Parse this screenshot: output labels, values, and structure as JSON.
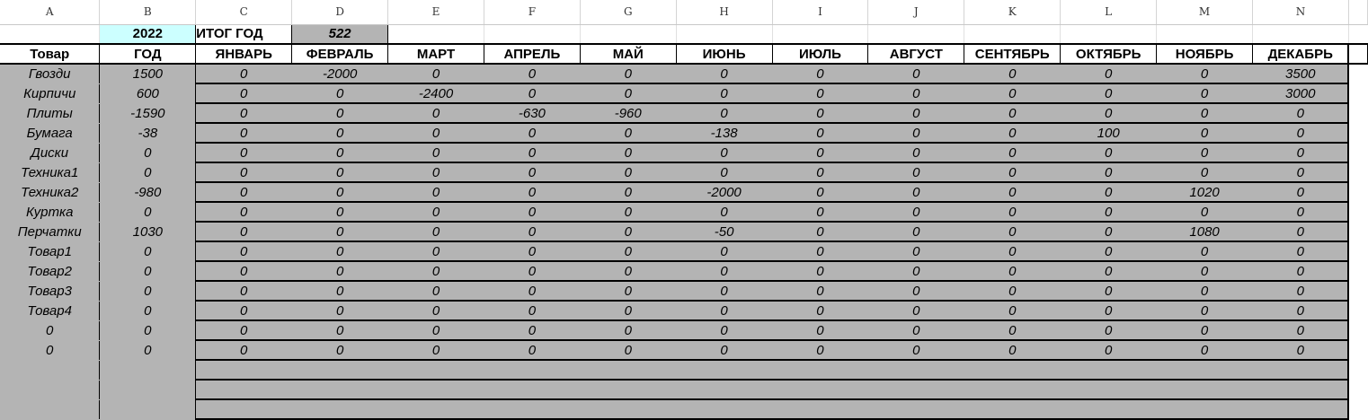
{
  "columns": [
    "A",
    "B",
    "C",
    "D",
    "E",
    "F",
    "G",
    "H",
    "I",
    "J",
    "K",
    "L",
    "M",
    "N"
  ],
  "row1": {
    "year": "2022",
    "total_label": "ИТОГ ГОД",
    "total_value": "522"
  },
  "header": {
    "item": "Товар",
    "year": "ГОД",
    "months": [
      "ЯНВАРЬ",
      "ФЕВРАЛЬ",
      "МАРТ",
      "АПРЕЛЬ",
      "МАЙ",
      "ИЮНЬ",
      "ИЮЛЬ",
      "АВГУСТ",
      "СЕНТЯБРЬ",
      "ОКТЯБРЬ",
      "НОЯБРЬ",
      "ДЕКАБРЬ"
    ]
  },
  "rows": [
    {
      "item": "Гвозди",
      "year": "1500",
      "months": [
        "0",
        "-2000",
        "0",
        "0",
        "0",
        "0",
        "0",
        "0",
        "0",
        "0",
        "0",
        "3500"
      ]
    },
    {
      "item": "Кирпичи",
      "year": "600",
      "months": [
        "0",
        "0",
        "-2400",
        "0",
        "0",
        "0",
        "0",
        "0",
        "0",
        "0",
        "0",
        "3000"
      ]
    },
    {
      "item": "Плиты",
      "year": "-1590",
      "months": [
        "0",
        "0",
        "0",
        "-630",
        "-960",
        "0",
        "0",
        "0",
        "0",
        "0",
        "0",
        "0"
      ]
    },
    {
      "item": "Бумага",
      "year": "-38",
      "months": [
        "0",
        "0",
        "0",
        "0",
        "0",
        "-138",
        "0",
        "0",
        "0",
        "100",
        "0",
        "0"
      ]
    },
    {
      "item": "Диски",
      "year": "0",
      "months": [
        "0",
        "0",
        "0",
        "0",
        "0",
        "0",
        "0",
        "0",
        "0",
        "0",
        "0",
        "0"
      ]
    },
    {
      "item": "Техника1",
      "year": "0",
      "months": [
        "0",
        "0",
        "0",
        "0",
        "0",
        "0",
        "0",
        "0",
        "0",
        "0",
        "0",
        "0"
      ]
    },
    {
      "item": "Техника2",
      "year": "-980",
      "months": [
        "0",
        "0",
        "0",
        "0",
        "0",
        "-2000",
        "0",
        "0",
        "0",
        "0",
        "1020",
        "0"
      ]
    },
    {
      "item": "Куртка",
      "year": "0",
      "months": [
        "0",
        "0",
        "0",
        "0",
        "0",
        "0",
        "0",
        "0",
        "0",
        "0",
        "0",
        "0"
      ]
    },
    {
      "item": "Перчатки",
      "year": "1030",
      "months": [
        "0",
        "0",
        "0",
        "0",
        "0",
        "-50",
        "0",
        "0",
        "0",
        "0",
        "1080",
        "0"
      ]
    },
    {
      "item": "Товар1",
      "year": "0",
      "months": [
        "0",
        "0",
        "0",
        "0",
        "0",
        "0",
        "0",
        "0",
        "0",
        "0",
        "0",
        "0"
      ]
    },
    {
      "item": "Товар2",
      "year": "0",
      "months": [
        "0",
        "0",
        "0",
        "0",
        "0",
        "0",
        "0",
        "0",
        "0",
        "0",
        "0",
        "0"
      ]
    },
    {
      "item": "Товар3",
      "year": "0",
      "months": [
        "0",
        "0",
        "0",
        "0",
        "0",
        "0",
        "0",
        "0",
        "0",
        "0",
        "0",
        "0"
      ]
    },
    {
      "item": "Товар4",
      "year": "0",
      "months": [
        "0",
        "0",
        "0",
        "0",
        "0",
        "0",
        "0",
        "0",
        "0",
        "0",
        "0",
        "0"
      ]
    },
    {
      "item": "0",
      "year": "0",
      "months": [
        "0",
        "0",
        "0",
        "0",
        "0",
        "0",
        "0",
        "0",
        "0",
        "0",
        "0",
        "0"
      ]
    },
    {
      "item": "0",
      "year": "0",
      "months": [
        "0",
        "0",
        "0",
        "0",
        "0",
        "0",
        "0",
        "0",
        "0",
        "0",
        "0",
        "0"
      ]
    }
  ],
  "empty_rows": 3,
  "colors": {
    "gray_fill": "#b4b4b4",
    "year_cell": "#ccffff",
    "scroll_accent": "#1f8fff"
  }
}
